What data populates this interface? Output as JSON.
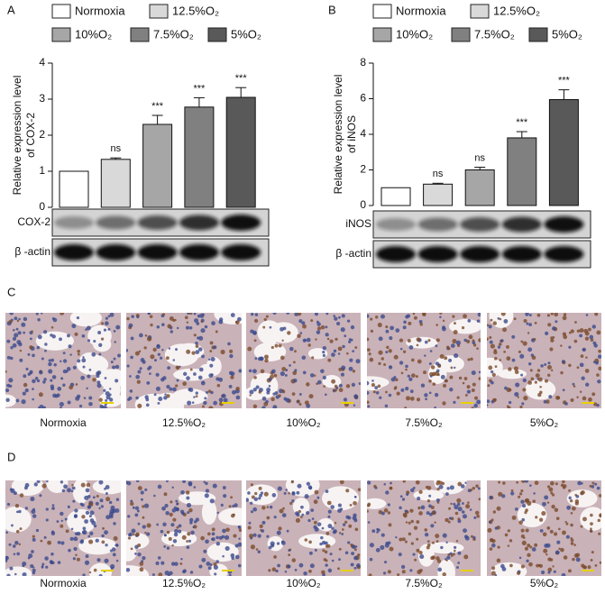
{
  "chart_data": [
    {
      "type": "bar",
      "panel": "A",
      "ylabel": [
        "Relative expression level",
        "of COX-2"
      ],
      "categories": [
        "Normoxia",
        "12.5%O₂",
        "10%O₂",
        "7.5%O₂",
        "5%O₂"
      ],
      "colors": [
        "#ffffff",
        "#d9d9d9",
        "#a6a6a6",
        "#808080",
        "#595959"
      ],
      "values": [
        1.0,
        1.33,
        2.3,
        2.78,
        3.05
      ],
      "errors": [
        0,
        0.04,
        0.25,
        0.26,
        0.27
      ],
      "annotations": [
        null,
        "ns",
        "***",
        "***",
        "***"
      ],
      "ylim": [
        0,
        4
      ],
      "yticks": [
        0,
        1,
        2,
        3,
        4
      ],
      "blots": [
        "COX-2",
        "β -actin"
      ]
    },
    {
      "type": "bar",
      "panel": "B",
      "ylabel": [
        "Relative expression level",
        "of iNOS"
      ],
      "categories": [
        "Normoxia",
        "12.5%O₂",
        "10%O₂",
        "7.5%O₂",
        "5%O₂"
      ],
      "colors": [
        "#ffffff",
        "#d9d9d9",
        "#a6a6a6",
        "#808080",
        "#595959"
      ],
      "values": [
        1.0,
        1.2,
        2.0,
        3.8,
        5.95
      ],
      "errors": [
        0,
        0.05,
        0.15,
        0.35,
        0.55
      ],
      "annotations": [
        null,
        "ns",
        "ns",
        "***",
        "***"
      ],
      "ylim": [
        0,
        8
      ],
      "yticks": [
        0,
        2,
        4,
        6,
        8
      ],
      "blots": [
        "iNOS",
        "β -actin"
      ]
    }
  ],
  "ihc_rows": [
    {
      "panel": "C",
      "labels": [
        "Normoxia",
        "12.5%O₂",
        "10%O₂",
        "7.5%O₂",
        "5%O₂"
      ]
    },
    {
      "panel": "D",
      "labels": [
        "Normoxia",
        "12.5%O₂",
        "10%O₂",
        "7.5%O₂",
        "5%O₂"
      ]
    }
  ]
}
